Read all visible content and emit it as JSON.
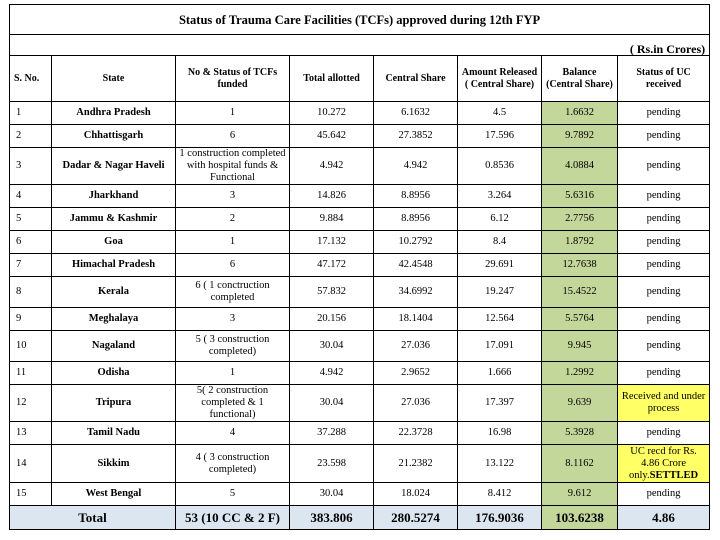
{
  "title": "Status of Trauma Care Facilities (TCFs) approved during 12th FYP",
  "units": "( Rs.in Crores)",
  "headers": {
    "sno": "S. No.",
    "state": "State",
    "status": "No & Status of TCFs funded",
    "total_allotted": "Total allotted",
    "central_share": "Central Share",
    "amount_released": "Amount Released ( Central Share)",
    "balance": "Balance (Central Share)",
    "uc_status": "Status of UC received"
  },
  "rows": [
    {
      "sno": "1",
      "state": "Andhra Pradesh",
      "status": "1",
      "total": "10.272",
      "central": "6.1632",
      "released": "4.5",
      "balance": "1.6632",
      "uc": "pending"
    },
    {
      "sno": "2",
      "state": "Chhattisgarh",
      "status": "6",
      "total": "45.642",
      "central": "27.3852",
      "released": "17.596",
      "balance": "9.7892",
      "uc": "pending"
    },
    {
      "sno": "3",
      "state": "Dadar & Nagar Haveli",
      "status": "1 construction completed with hospital funds & Functional",
      "total": "4.942",
      "central": "4.942",
      "released": "0.8536",
      "balance": "4.0884",
      "uc": "pending"
    },
    {
      "sno": "4",
      "state": "Jharkhand",
      "status": "3",
      "total": "14.826",
      "central": "8.8956",
      "released": "3.264",
      "balance": "5.6316",
      "uc": "pending"
    },
    {
      "sno": "5",
      "state": "Jammu & Kashmir",
      "status": "2",
      "total": "9.884",
      "central": "8.8956",
      "released": "6.12",
      "balance": "2.7756",
      "uc": "pending"
    },
    {
      "sno": "6",
      "state": "Goa",
      "status": "1",
      "total": "17.132",
      "central": "10.2792",
      "released": "8.4",
      "balance": "1.8792",
      "uc": "pending"
    },
    {
      "sno": "7",
      "state": "Himachal Pradesh",
      "status": "6",
      "total": "47.172",
      "central": "42.4548",
      "released": "29.691",
      "balance": "12.7638",
      "uc": "pending"
    },
    {
      "sno": "8",
      "state": "Kerala",
      "status": "6 ( 1 conctruction completed",
      "total": "57.832",
      "central": "34.6992",
      "released": "19.247",
      "balance": "15.4522",
      "uc": "pending"
    },
    {
      "sno": "9",
      "state": "Meghalaya",
      "status": "3",
      "total": "20.156",
      "central": "18.1404",
      "released": "12.564",
      "balance": "5.5764",
      "uc": "pending"
    },
    {
      "sno": "10",
      "state": "Nagaland",
      "status": "5 ( 3 construction completed)",
      "total": "30.04",
      "central": "27.036",
      "released": "17.091",
      "balance": "9.945",
      "uc": "pending"
    },
    {
      "sno": "11",
      "state": "Odisha",
      "status": "1",
      "total": "4.942",
      "central": "2.9652",
      "released": "1.666",
      "balance": "1.2992",
      "uc": "pending"
    },
    {
      "sno": "12",
      "state": "Tripura",
      "status": "5( 2 construction completed & 1 functional)",
      "total": "30.04",
      "central": "27.036",
      "released": "17.397",
      "balance": "9.639",
      "uc": "Received and under process",
      "uc_highlight": true
    },
    {
      "sno": "13",
      "state": "Tamil Nadu",
      "status": "4",
      "total": "37.288",
      "central": "22.3728",
      "released": "16.98",
      "balance": "5.3928",
      "uc": "pending"
    },
    {
      "sno": "14",
      "state": "Sikkim",
      "status": "4 ( 3 construction completed)",
      "total": "23.598",
      "central": "21.2382",
      "released": "13.122",
      "balance": "8.1162",
      "uc": "UC recd for Rs. 4.86 Crore only.",
      "uc_bold_suffix": "SETTLED",
      "uc_highlight": true
    },
    {
      "sno": "15",
      "state": "West Bengal",
      "status": "5",
      "total": "30.04",
      "central": "18.024",
      "released": "8.412",
      "balance": "9.612",
      "uc": "pending"
    }
  ],
  "total_row": {
    "label": "Total",
    "status": "53 (10 CC & 2 F)",
    "total": "383.806",
    "central": "280.5274",
    "released": "176.9036",
    "balance": "103.6238",
    "uc": "4.86"
  },
  "colors": {
    "balance_fill": "#c4d79b",
    "uc_highlight_fill": "#ffff66",
    "total_row_fill": "#dce6f1"
  }
}
